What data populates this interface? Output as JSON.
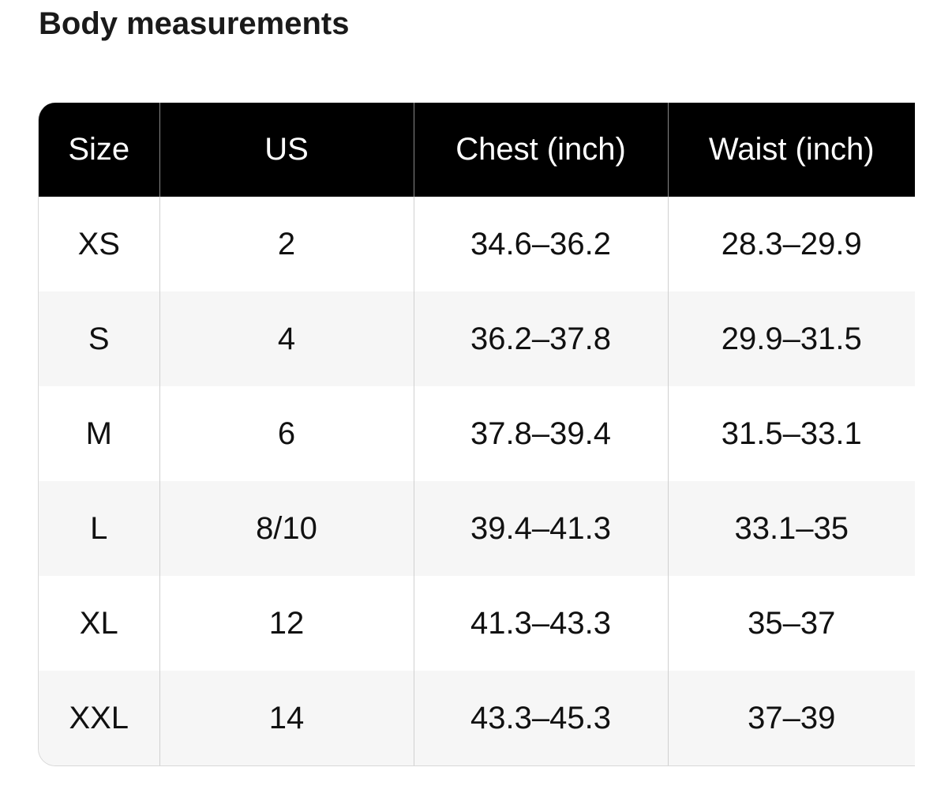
{
  "header": {
    "title": "Body measurements"
  },
  "table": {
    "columns": [
      "Size",
      "US",
      "Chest (inch)",
      "Waist (inch)"
    ],
    "rows": [
      [
        "XS",
        "2",
        "34.6–36.2",
        "28.3–29.9"
      ],
      [
        "S",
        "4",
        "36.2–37.8",
        "29.9–31.5"
      ],
      [
        "M",
        "6",
        "37.8–39.4",
        "31.5–33.1"
      ],
      [
        "L",
        "8/10",
        "39.4–41.3",
        "33.1–35"
      ],
      [
        "XL",
        "12",
        "41.3–43.3",
        "35–37"
      ],
      [
        "XXL",
        "14",
        "43.3–45.3",
        "37–39"
      ]
    ]
  }
}
